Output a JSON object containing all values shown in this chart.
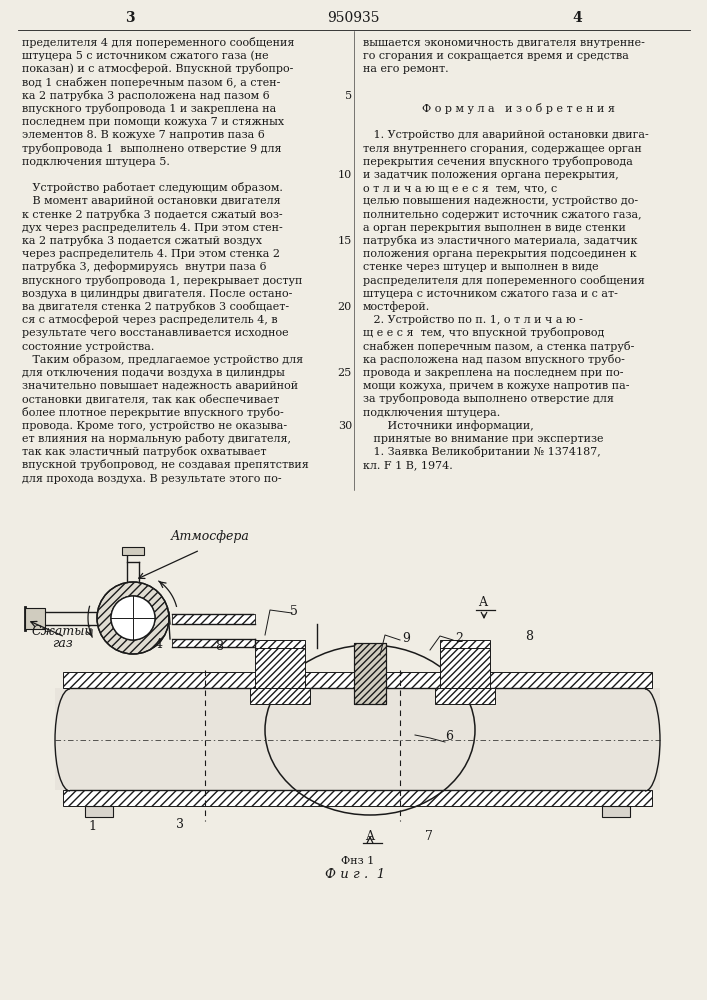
{
  "title": "950935",
  "page_left": "3",
  "page_right": "4",
  "bg_color": "#f0ede4",
  "text_color": "#1a1a1a",
  "left_col_lines": [
    "пределителя 4 для попеременного сообщения",
    "штуцера 5 с источником сжатого газа (не",
    "показан) и с атмосферой. Впускной трубопро-",
    "вод 1 снабжен поперечным пазом 6, а стен-",
    "ка 2 патрубка 3 расположена над пазом 6",
    "впускного трубопровода 1 и закреплена на",
    "последнем при помощи кожуха 7 и стяжных",
    "элементов 8. В кожухе 7 напротив паза 6",
    "трубопровода 1  выполнено отверстие 9 для",
    "подключения штуцера 5.",
    "",
    "   Устройство работает следующим образом.",
    "   В момент аварийной остановки двигателя",
    "к стенке 2 патрубка 3 подается сжатый воз-",
    "дух через распределитель 4. При этом стен-",
    "ка 2 патрубка 3 подается сжатый воздух",
    "через распределитель 4. При этом стенка 2",
    "патрубка 3, деформируясь  внутри паза 6",
    "впускного трубопровода 1, перекрывает доступ",
    "воздуха в цилиндры двигателя. После остано-",
    "ва двигателя стенка 2 патрубков 3 сообщает-",
    "ся с атмосферой через распределитель 4, в",
    "результате чего восстанавливается исходное",
    "состояние устройства.",
    "   Таким образом, предлагаемое устройство для",
    "для отключения подачи воздуха в цилиндры",
    "значительно повышает надежность аварийной",
    "остановки двигателя, так как обеспечивает",
    "более плотное перекрытие впускного трубо-",
    "провода. Кроме того, устройство не оказыва-",
    "ет влияния на нормальную работу двигателя,",
    "так как эластичный патрубок охватывает",
    "впускной трубопровод, не создавая препятствия",
    "для прохода воздуха. В результате этого по-"
  ],
  "right_col_lines": [
    "вышается экономичность двигателя внутренне-",
    "го сгорания и сокращается время и средства",
    "на его ремонт.",
    "",
    "",
    "Ф о р м у л а   и з о б р е т е н и я",
    "",
    "   1. Устройство для аварийной остановки двига-",
    "теля внутреннего сгорания, содержащее орган",
    "перекрытия сечения впускного трубопровода",
    "и задатчик положения органа перекрытия,",
    "о т л и ч а ю щ е е с я  тем, что, с",
    "целью повышения надежности, устройство до-",
    "полнительно содержит источник сжатого газа,",
    "а орган перекрытия выполнен в виде стенки",
    "патрубка из эластичного материала, задатчик",
    "положения органа перекрытия подсоединен к",
    "стенке через штуцер и выполнен в виде",
    "распределителя для попеременного сообщения",
    "штуцера с источником сжатого газа и с ат-",
    "мостферой.",
    "   2. Устройство по п. 1, о т л и ч а ю -",
    "щ е е с я  тем, что впускной трубопровод",
    "снабжен поперечным пазом, а стенка патруб-",
    "ка расположена над пазом впускного трубо-",
    "провода и закреплена на последнем при по-",
    "мощи кожуха, причем в кожухе напротив па-",
    "за трубопровода выполнено отверстие для",
    "подключения штуцера.",
    "       Источники информации,",
    "   принятые во внимание при экспертизе",
    "   1. Заявка Великобритании № 1374187,",
    "кл. F 1 В, 1974."
  ],
  "line_numbers": [
    "",
    "",
    "",
    "",
    "5",
    "",
    "",
    "",
    "",
    "",
    "10",
    "",
    "",
    "",
    "",
    "15",
    "",
    "",
    "",
    "",
    "20",
    "",
    "",
    "",
    "",
    "25",
    "",
    "",
    "",
    "30",
    "",
    "",
    "",
    ""
  ]
}
